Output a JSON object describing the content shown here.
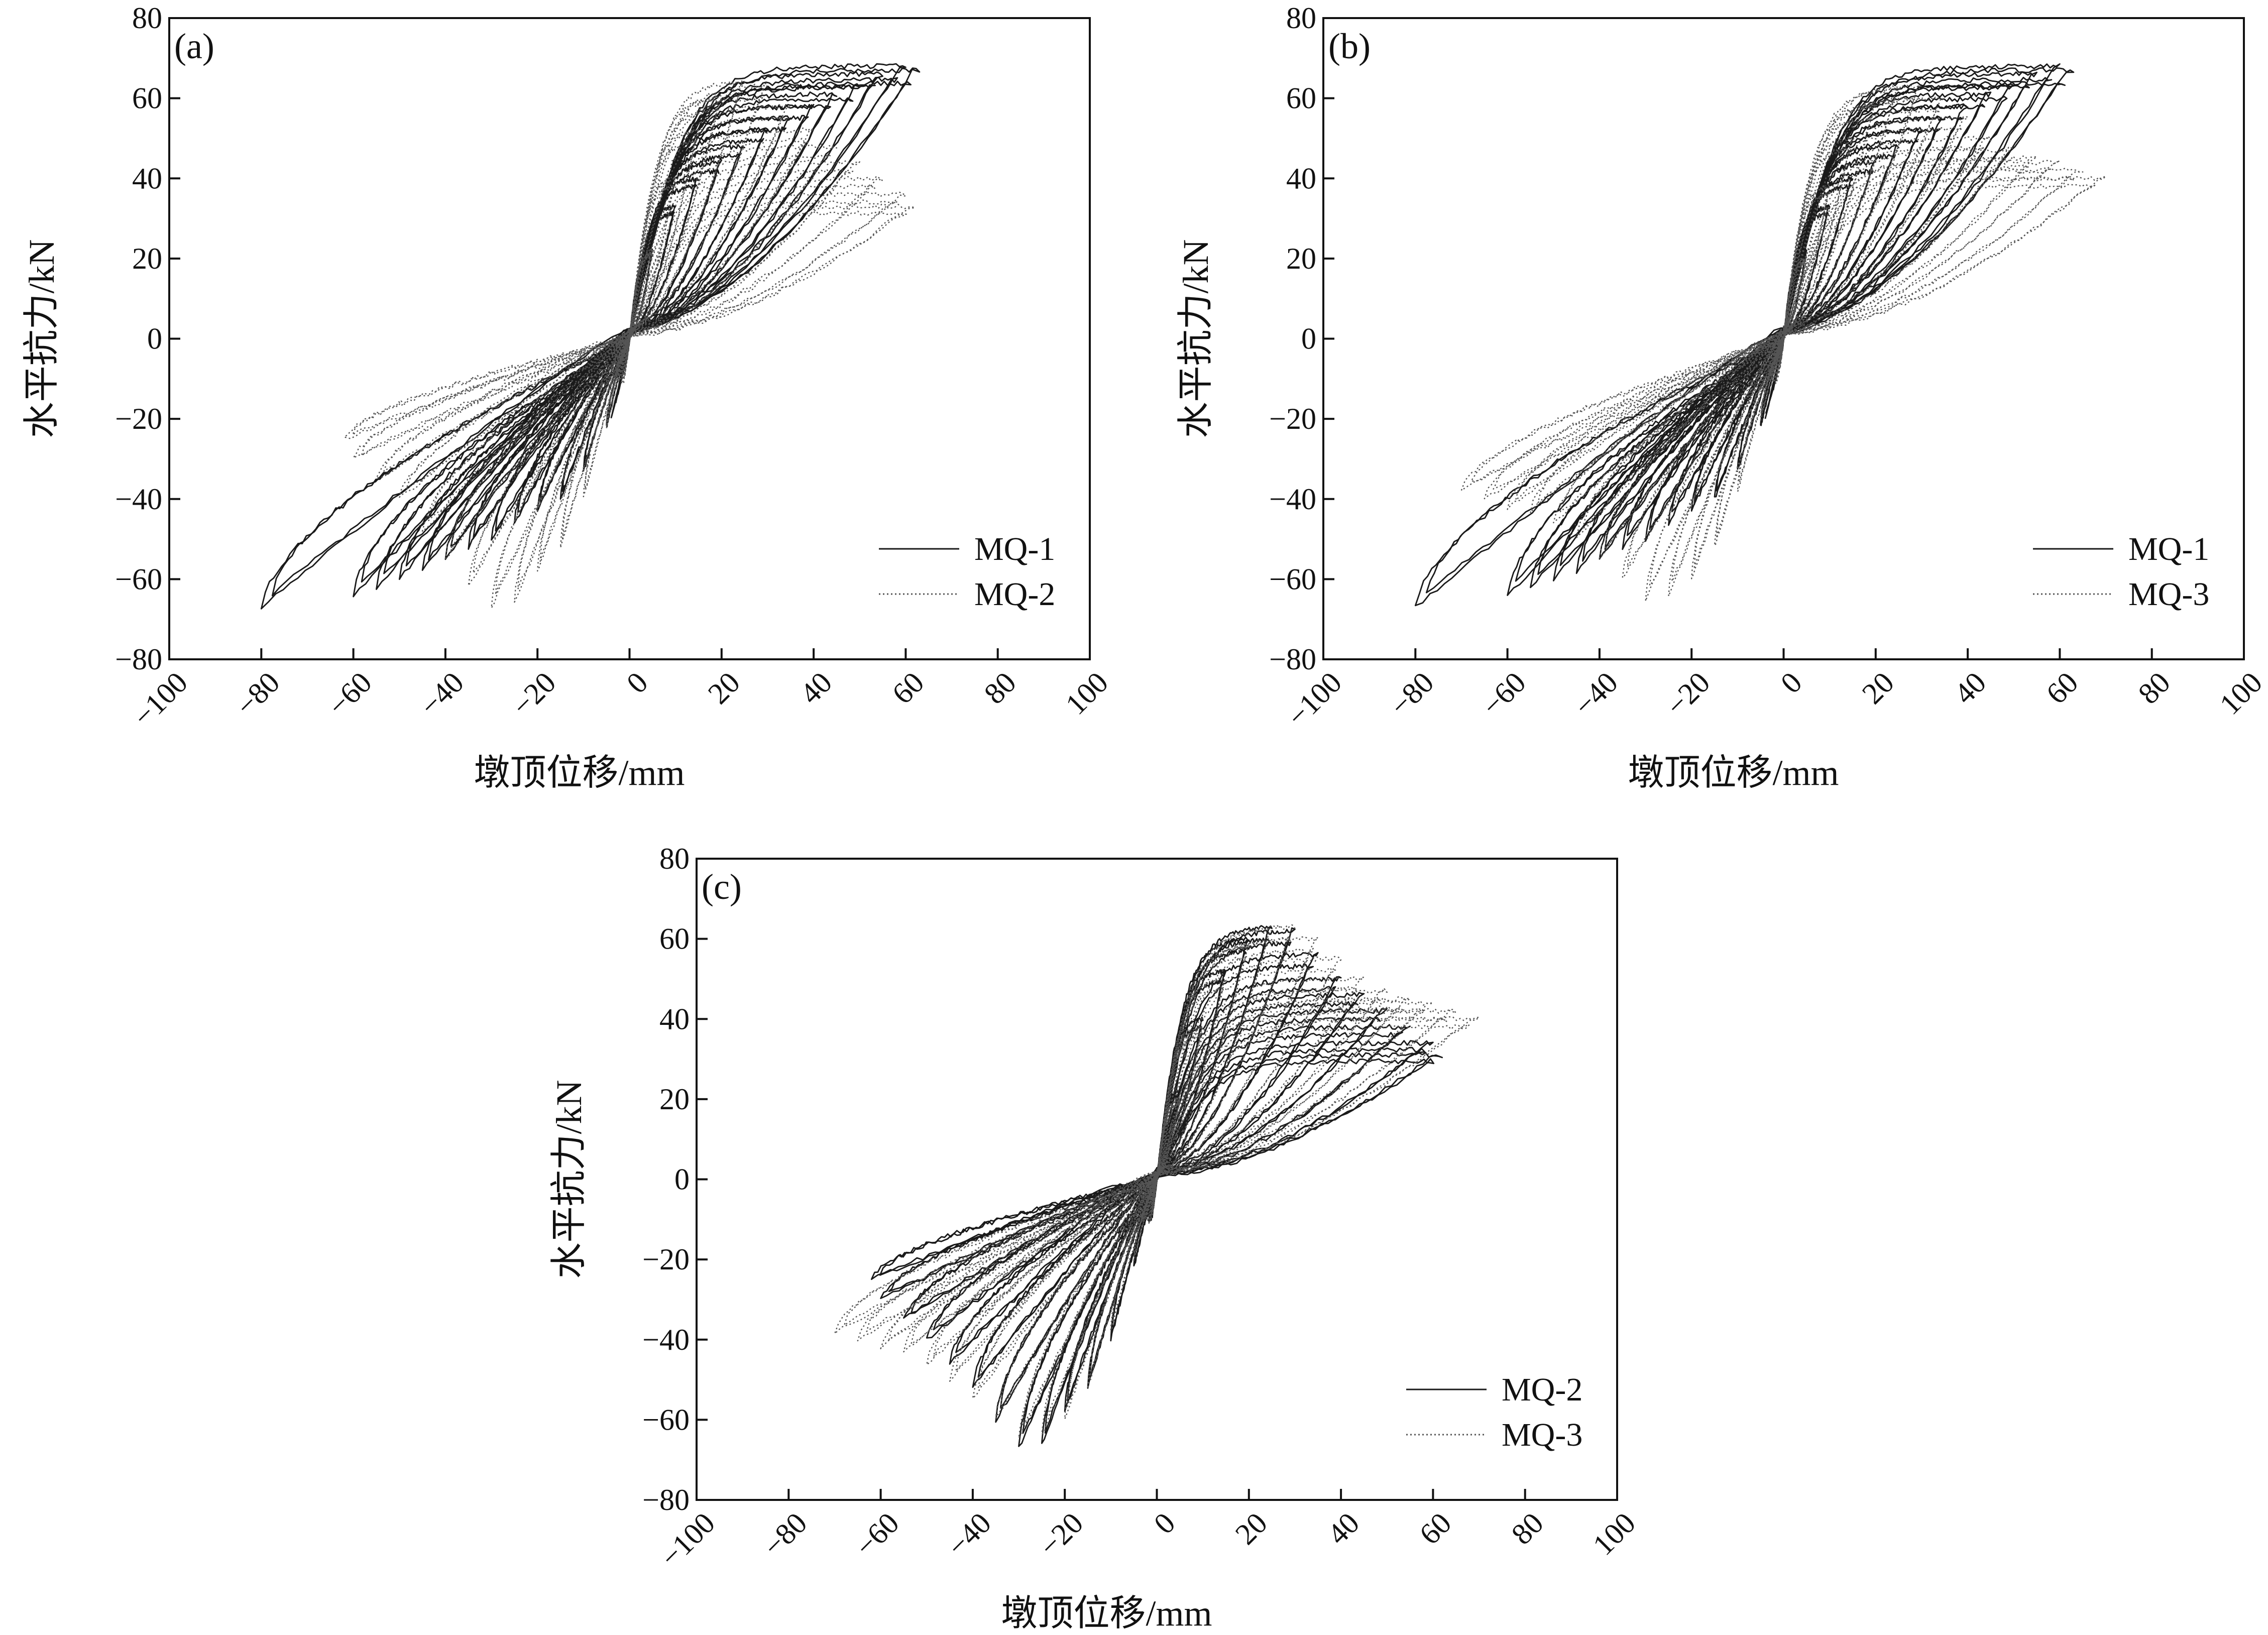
{
  "chart_data": [
    {
      "panel": "(a)",
      "type": "line",
      "xlabel": "墩顶位移/mm",
      "ylabel": "水平抗力/kN",
      "xlim": [
        -100,
        100
      ],
      "ylim": [
        -80,
        80
      ],
      "xticks": [
        -100,
        -80,
        -60,
        -40,
        -20,
        0,
        20,
        40,
        60,
        80,
        100
      ],
      "yticks": [
        -80,
        -60,
        -40,
        -20,
        0,
        20,
        40,
        60,
        80
      ],
      "xtick_labels": [
        "−100",
        "−80",
        "−60",
        "−40",
        "−20",
        "0",
        "20",
        "40",
        "60",
        "80",
        "100"
      ],
      "ytick_labels": [
        "−80",
        "−60",
        "−40",
        "−20",
        "0",
        "20",
        "40",
        "60",
        "80"
      ],
      "legend": "bottom-right",
      "grid": false,
      "series": [
        {
          "name": "MQ-1",
          "style": "solid",
          "color": "#1a1a1a",
          "amplitudes_mm": [
            5,
            10,
            15,
            20,
            25,
            30,
            35,
            40,
            45,
            50,
            55,
            60,
            63
          ],
          "peak_force_pos_kN": [
            22,
            33,
            40,
            44,
            48,
            52,
            55,
            58,
            61,
            63,
            66,
            68,
            67
          ],
          "peak_force_neg_kN": [
            -22,
            -33,
            -40,
            -43,
            -46,
            -50,
            -52,
            -55,
            -58,
            -60,
            -62,
            -64,
            -67
          ],
          "max_neg_amplitude_mm": -80,
          "end_force_neg_kN": -60
        },
        {
          "name": "MQ-2",
          "style": "dotted",
          "color": "#555555",
          "amplitudes_mm": [
            5,
            10,
            15,
            20,
            25,
            30,
            35,
            40,
            45,
            50,
            55,
            60,
            62
          ],
          "peak_force_pos_kN": [
            22,
            40,
            52,
            60,
            64,
            63,
            58,
            52,
            48,
            44,
            40,
            36,
            33
          ],
          "peak_force_neg_kN": [
            -22,
            -40,
            -52,
            -58,
            -66,
            -67,
            -62,
            -55,
            -48,
            -40,
            -35,
            -30,
            -25
          ]
        }
      ]
    },
    {
      "panel": "(b)",
      "type": "line",
      "xlabel": "墩顶位移/mm",
      "ylabel": "水平抗力/kN",
      "xlim": [
        -100,
        100
      ],
      "ylim": [
        -80,
        80
      ],
      "xticks": [
        -100,
        -80,
        -60,
        -40,
        -20,
        0,
        20,
        40,
        60,
        80,
        100
      ],
      "yticks": [
        -80,
        -60,
        -40,
        -20,
        0,
        20,
        40,
        60,
        80
      ],
      "xtick_labels": [
        "−100",
        "−80",
        "−60",
        "−40",
        "−20",
        "0",
        "20",
        "40",
        "60",
        "80",
        "100"
      ],
      "ytick_labels": [
        "−80",
        "−60",
        "−40",
        "−20",
        "0",
        "20",
        "40",
        "60",
        "80"
      ],
      "legend": "bottom-right",
      "grid": false,
      "series": [
        {
          "name": "MQ-1",
          "style": "solid",
          "color": "#1a1a1a",
          "amplitudes_mm": [
            5,
            10,
            15,
            20,
            25,
            30,
            35,
            40,
            45,
            50,
            55,
            60,
            63
          ],
          "peak_force_pos_kN": [
            22,
            33,
            40,
            44,
            48,
            52,
            55,
            58,
            61,
            63,
            66,
            68,
            67
          ],
          "peak_force_neg_kN": [
            -22,
            -33,
            -40,
            -43,
            -46,
            -50,
            -52,
            -55,
            -58,
            -60,
            -62,
            -64,
            -67
          ],
          "max_neg_amplitude_mm": -80,
          "end_force_neg_kN": -60
        },
        {
          "name": "MQ-3",
          "style": "dotted",
          "color": "#555555",
          "amplitudes_mm": [
            5,
            10,
            15,
            20,
            25,
            30,
            35,
            40,
            45,
            50,
            55,
            60,
            65,
            70
          ],
          "peak_force_pos_kN": [
            20,
            38,
            50,
            58,
            62,
            63,
            60,
            55,
            50,
            47,
            45,
            44,
            42,
            40
          ],
          "peak_force_neg_kN": [
            -20,
            -38,
            -52,
            -60,
            -64,
            -65,
            -60,
            -55,
            -50,
            -46,
            -43,
            -42,
            -40,
            -38
          ]
        }
      ]
    },
    {
      "panel": "(c)",
      "type": "line",
      "xlabel": "墩顶位移/mm",
      "ylabel": "水平抗力/kN",
      "xlim": [
        -100,
        100
      ],
      "ylim": [
        -80,
        80
      ],
      "xticks": [
        -100,
        -80,
        -60,
        -40,
        -20,
        0,
        20,
        40,
        60,
        80,
        100
      ],
      "yticks": [
        -80,
        -60,
        -40,
        -20,
        0,
        20,
        40,
        60,
        80
      ],
      "xtick_labels": [
        "−100",
        "−80",
        "−60",
        "−40",
        "−20",
        "0",
        "20",
        "40",
        "60",
        "80",
        "100"
      ],
      "ytick_labels": [
        "−80",
        "−60",
        "−40",
        "−20",
        "0",
        "20",
        "40",
        "60",
        "80"
      ],
      "legend": "bottom-right",
      "grid": false,
      "series": [
        {
          "name": "MQ-2",
          "style": "solid",
          "color": "#1a1a1a",
          "amplitudes_mm": [
            5,
            10,
            15,
            20,
            25,
            30,
            35,
            40,
            45,
            50,
            55,
            60,
            62
          ],
          "peak_force_pos_kN": [
            22,
            40,
            52,
            60,
            63,
            62,
            56,
            50,
            46,
            42,
            38,
            34,
            31
          ],
          "peak_force_neg_kN": [
            -22,
            -40,
            -52,
            -58,
            -66,
            -67,
            -60,
            -52,
            -46,
            -40,
            -35,
            -30,
            -25
          ]
        },
        {
          "name": "MQ-3",
          "style": "dotted",
          "color": "#555555",
          "amplitudes_mm": [
            5,
            10,
            15,
            20,
            25,
            30,
            35,
            40,
            45,
            50,
            55,
            60,
            65,
            70
          ],
          "peak_force_pos_kN": [
            20,
            38,
            50,
            58,
            62,
            63,
            60,
            55,
            50,
            47,
            45,
            44,
            42,
            40
          ],
          "peak_force_neg_kN": [
            -20,
            -38,
            -52,
            -60,
            -64,
            -65,
            -60,
            -55,
            -50,
            -46,
            -43,
            -42,
            -40,
            -38
          ]
        }
      ]
    }
  ]
}
